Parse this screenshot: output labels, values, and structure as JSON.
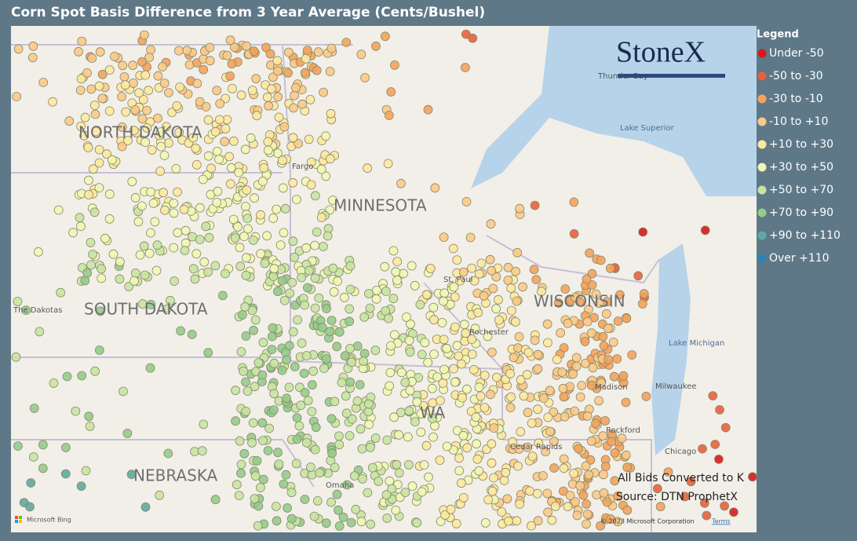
{
  "title": "Corn Spot Basis Difference from 3 Year Average (Cents/Bushel)",
  "logo": "StoneX",
  "legend": {
    "title": "Legend",
    "items": [
      {
        "label": "Under -50",
        "color": "#d7191c"
      },
      {
        "label": "-50 to -30",
        "color": "#e8603c"
      },
      {
        "label": "-30 to -10",
        "color": "#f4a25c"
      },
      {
        "label": "-10 to +10",
        "color": "#fbc987"
      },
      {
        "label": "+10 to +30",
        "color": "#fde8a0"
      },
      {
        "label": "+30 to +50",
        "color": "#f1f7b4"
      },
      {
        "label": "+50 to +70",
        "color": "#c8e4a3"
      },
      {
        "label": "+70 to +90",
        "color": "#95cb8b"
      },
      {
        "label": "+90 to +110",
        "color": "#5ea9a1"
      },
      {
        "label": "Over +110",
        "color": "#2b83ba"
      }
    ]
  },
  "map_labels": {
    "states": [
      "NORTH DAKOTA",
      "MINNESOTA",
      "SOUTH DAKOTA",
      "WISCONSIN",
      "NEBRASKA",
      "WA"
    ],
    "places": [
      "The Dakotas",
      "Fargo",
      "Lake Superior",
      "Lake Michigan",
      "Milwaukee",
      "Rockford",
      "Chicago",
      "Omaha",
      "Cedar Rapids",
      "Thunder Bay",
      "St. Paul",
      "Rochester",
      "Madison"
    ]
  },
  "notes": [
    "All Bids Converted to K",
    "Source: DTN ProphetX"
  ],
  "attribution": {
    "copyright": "© 2023 Microsoft Corporation",
    "terms": "Terms",
    "provider": "Microsoft Bing"
  }
}
